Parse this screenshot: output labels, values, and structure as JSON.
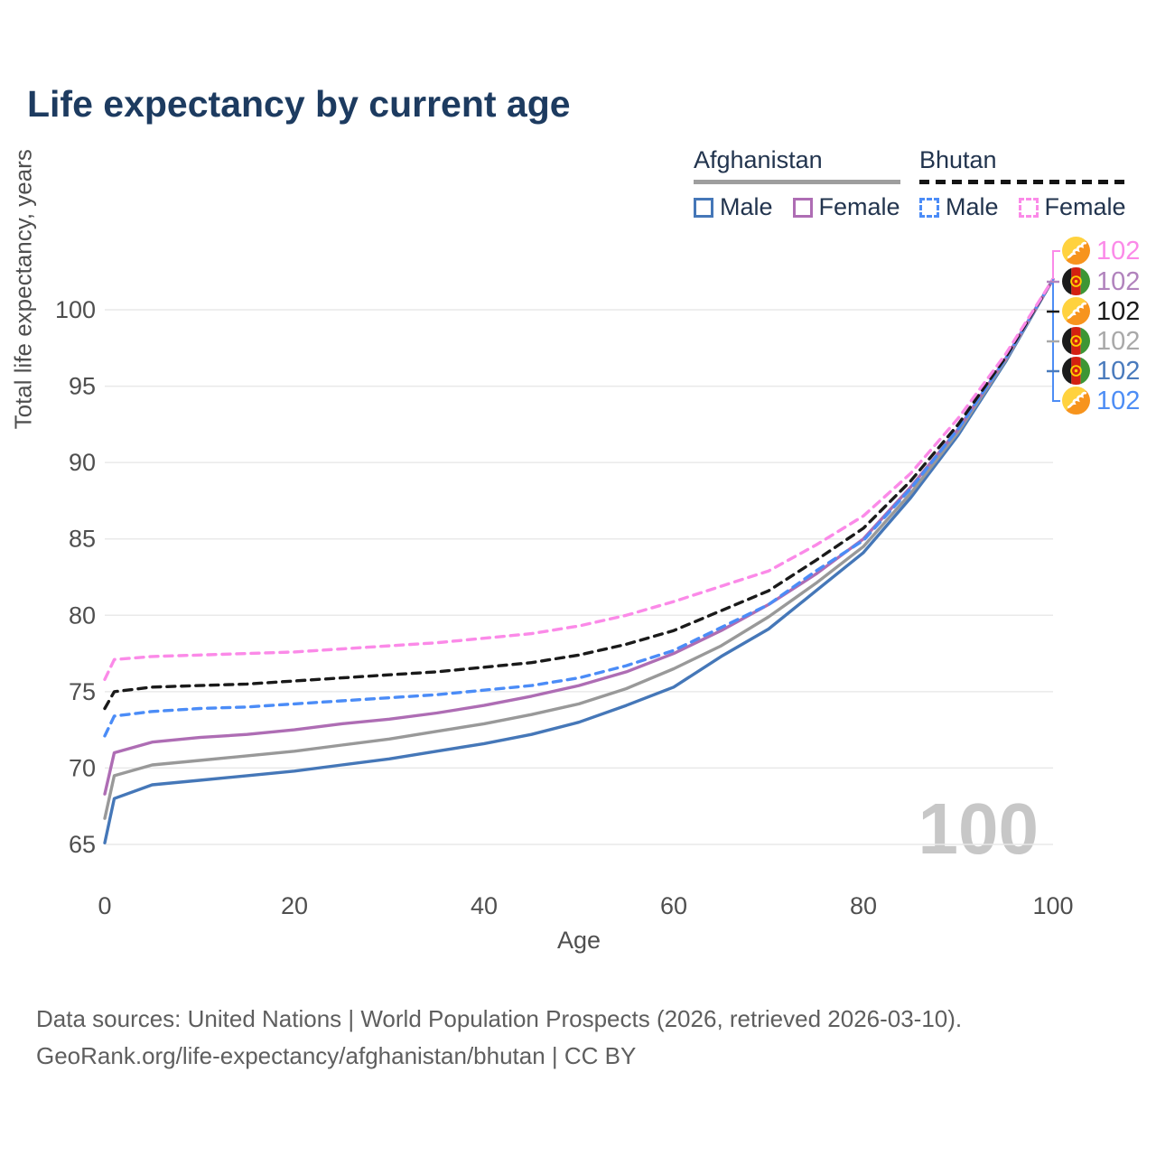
{
  "title": "Life expectancy by current age",
  "legend": {
    "groups": [
      {
        "label": "Afghanistan",
        "line_style": "solid",
        "items": [
          {
            "label": "Male",
            "series": "afghanistan_male"
          },
          {
            "label": "Female",
            "series": "afghanistan_female"
          }
        ]
      },
      {
        "label": "Bhutan",
        "line_style": "dashed",
        "items": [
          {
            "label": "Male",
            "series": "bhutan_male"
          },
          {
            "label": "Female",
            "series": "bhutan_female"
          }
        ]
      }
    ]
  },
  "chart_data": {
    "type": "line",
    "title": "Life expectancy by current age",
    "xlabel": "Age",
    "ylabel": "Total life expectancy, years",
    "xlim": [
      0,
      100
    ],
    "ylim": [
      63,
      103.5
    ],
    "xticks": [
      0,
      20,
      40,
      60,
      80,
      100
    ],
    "yticks": [
      65,
      70,
      75,
      80,
      85,
      90,
      95,
      100
    ],
    "grid": true,
    "x": [
      0,
      1,
      5,
      10,
      15,
      20,
      25,
      30,
      35,
      40,
      45,
      50,
      55,
      60,
      65,
      70,
      75,
      80,
      85,
      90,
      95,
      100
    ],
    "series": [
      {
        "name": "afghanistan_male",
        "country": "Afghanistan",
        "sex": "Male",
        "color": "#4577b8",
        "dash": "solid",
        "values": [
          65.1,
          68.0,
          68.9,
          69.2,
          69.5,
          69.8,
          70.2,
          70.6,
          71.1,
          71.6,
          72.2,
          73.0,
          74.1,
          75.3,
          77.3,
          79.1,
          81.6,
          84.1,
          87.7,
          91.8,
          96.6,
          102
        ]
      },
      {
        "name": "afghanistan_total",
        "country": "Afghanistan",
        "sex": "Both sexes",
        "color": "#999999",
        "dash": "solid",
        "values": [
          66.7,
          69.5,
          70.2,
          70.5,
          70.8,
          71.1,
          71.5,
          71.9,
          72.4,
          72.9,
          73.5,
          74.2,
          75.2,
          76.5,
          78.0,
          79.9,
          82.1,
          84.5,
          88.0,
          92.0,
          96.7,
          102
        ]
      },
      {
        "name": "afghanistan_female",
        "country": "Afghanistan",
        "sex": "Female",
        "color": "#ae6db4",
        "dash": "solid",
        "values": [
          68.3,
          71.0,
          71.7,
          72.0,
          72.2,
          72.5,
          72.9,
          73.2,
          73.6,
          74.1,
          74.7,
          75.4,
          76.3,
          77.5,
          79.0,
          80.7,
          82.7,
          85.0,
          88.4,
          92.2,
          96.8,
          102
        ]
      },
      {
        "name": "bhutan_male",
        "country": "Bhutan",
        "sex": "Male",
        "color": "#4b8cf7",
        "dash": "dashed",
        "values": [
          72.1,
          73.4,
          73.7,
          73.9,
          74.0,
          74.2,
          74.4,
          74.6,
          74.8,
          75.1,
          75.4,
          75.9,
          76.7,
          77.7,
          79.2,
          80.7,
          82.9,
          84.9,
          88.3,
          92.2,
          96.8,
          102
        ]
      },
      {
        "name": "bhutan_total",
        "country": "Bhutan",
        "sex": "Both sexes",
        "color": "#1a1a1a",
        "dash": "dashed",
        "values": [
          73.9,
          75.0,
          75.3,
          75.4,
          75.5,
          75.7,
          75.9,
          76.1,
          76.3,
          76.6,
          76.9,
          77.4,
          78.1,
          79.0,
          80.3,
          81.6,
          83.6,
          85.7,
          88.8,
          92.5,
          96.9,
          102
        ]
      },
      {
        "name": "bhutan_female",
        "country": "Bhutan",
        "sex": "Female",
        "color": "#fb8ae8",
        "dash": "dashed",
        "values": [
          75.8,
          77.1,
          77.3,
          77.4,
          77.5,
          77.6,
          77.8,
          78.0,
          78.2,
          78.5,
          78.8,
          79.3,
          80.0,
          80.9,
          81.9,
          82.9,
          84.6,
          86.5,
          89.3,
          92.9,
          97.1,
          102
        ]
      }
    ],
    "end_labels": [
      {
        "flag": "bhutan",
        "series": "bhutan_female",
        "value": "102",
        "color": "#fb8ae8"
      },
      {
        "flag": "afghanistan",
        "series": "afghanistan_female",
        "value": "102",
        "color": "#b183bd"
      },
      {
        "flag": "bhutan",
        "series": "bhutan_total",
        "value": "102",
        "color": "#1a1a1a"
      },
      {
        "flag": "afghanistan",
        "series": "afghanistan_total",
        "value": "102",
        "color": "#a9a9a9"
      },
      {
        "flag": "afghanistan",
        "series": "afghanistan_male",
        "value": "102",
        "color": "#4a7bbd"
      },
      {
        "flag": "bhutan",
        "series": "bhutan_male",
        "value": "102",
        "color": "#4d8df5"
      }
    ],
    "gridline_color": "#e9e9e9",
    "tick_color": "#4f4f4f"
  },
  "watermark": "100",
  "footer": {
    "line1": "Data sources: United Nations | World Population Prospects (2026, retrieved 2026-03-10).",
    "line2": "GeoRank.org/life-expectancy/afghanistan/bhutan | CC BY"
  }
}
